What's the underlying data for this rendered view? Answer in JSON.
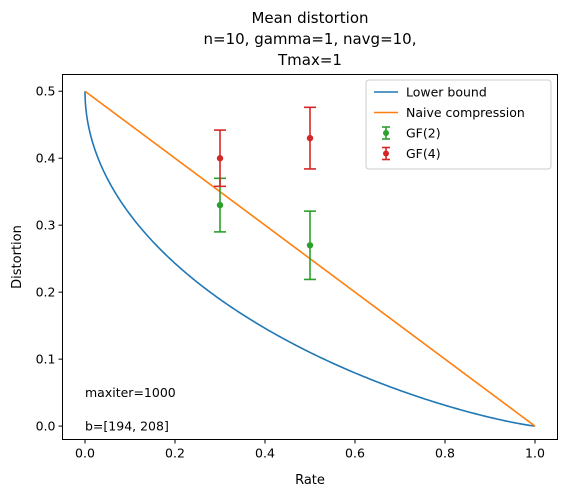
{
  "chart_data": {
    "type": "line",
    "title_lines": [
      "Mean distortion",
      "n=10, gamma=1, navg=10,",
      "Tmax=1"
    ],
    "xlabel": "Rate",
    "ylabel": "Distortion",
    "xlim": [
      -0.05,
      1.05
    ],
    "ylim": [
      -0.02,
      0.525
    ],
    "xticks": [
      0.0,
      0.2,
      0.4,
      0.6,
      0.8,
      1.0
    ],
    "xtick_labels": [
      "0.0",
      "0.2",
      "0.4",
      "0.6",
      "0.8",
      "1.0"
    ],
    "yticks": [
      0.0,
      0.1,
      0.2,
      0.3,
      0.4,
      0.5
    ],
    "ytick_labels": [
      "0.0",
      "0.1",
      "0.2",
      "0.3",
      "0.4",
      "0.5"
    ],
    "grid": false,
    "legend_position": "top-right",
    "series": [
      {
        "name": "Lower bound",
        "kind": "line",
        "color": "#1f77b4",
        "curve": "rate-distortion-binary",
        "x_range": [
          0.0,
          1.0
        ]
      },
      {
        "name": "Naive compression",
        "kind": "line",
        "color": "#ff7f0e",
        "x": [
          0.0,
          1.0
        ],
        "y": [
          0.5,
          0.0
        ]
      },
      {
        "name": "GF(2)",
        "kind": "errorbar",
        "color": "#2ca02c",
        "x": [
          0.3,
          0.5
        ],
        "y": [
          0.33,
          0.27
        ],
        "yerr": [
          0.04,
          0.051
        ]
      },
      {
        "name": "GF(4)",
        "kind": "errorbar",
        "color": "#d62728",
        "x": [
          0.3,
          0.5
        ],
        "y": [
          0.4,
          0.43
        ],
        "yerr": [
          0.042,
          0.046
        ]
      }
    ],
    "annotations": [
      {
        "text": "maxiter=1000",
        "x": 0.0,
        "y": 0.05
      },
      {
        "text": "b=[194, 208]",
        "x": 0.0,
        "y": 0.0
      }
    ]
  }
}
